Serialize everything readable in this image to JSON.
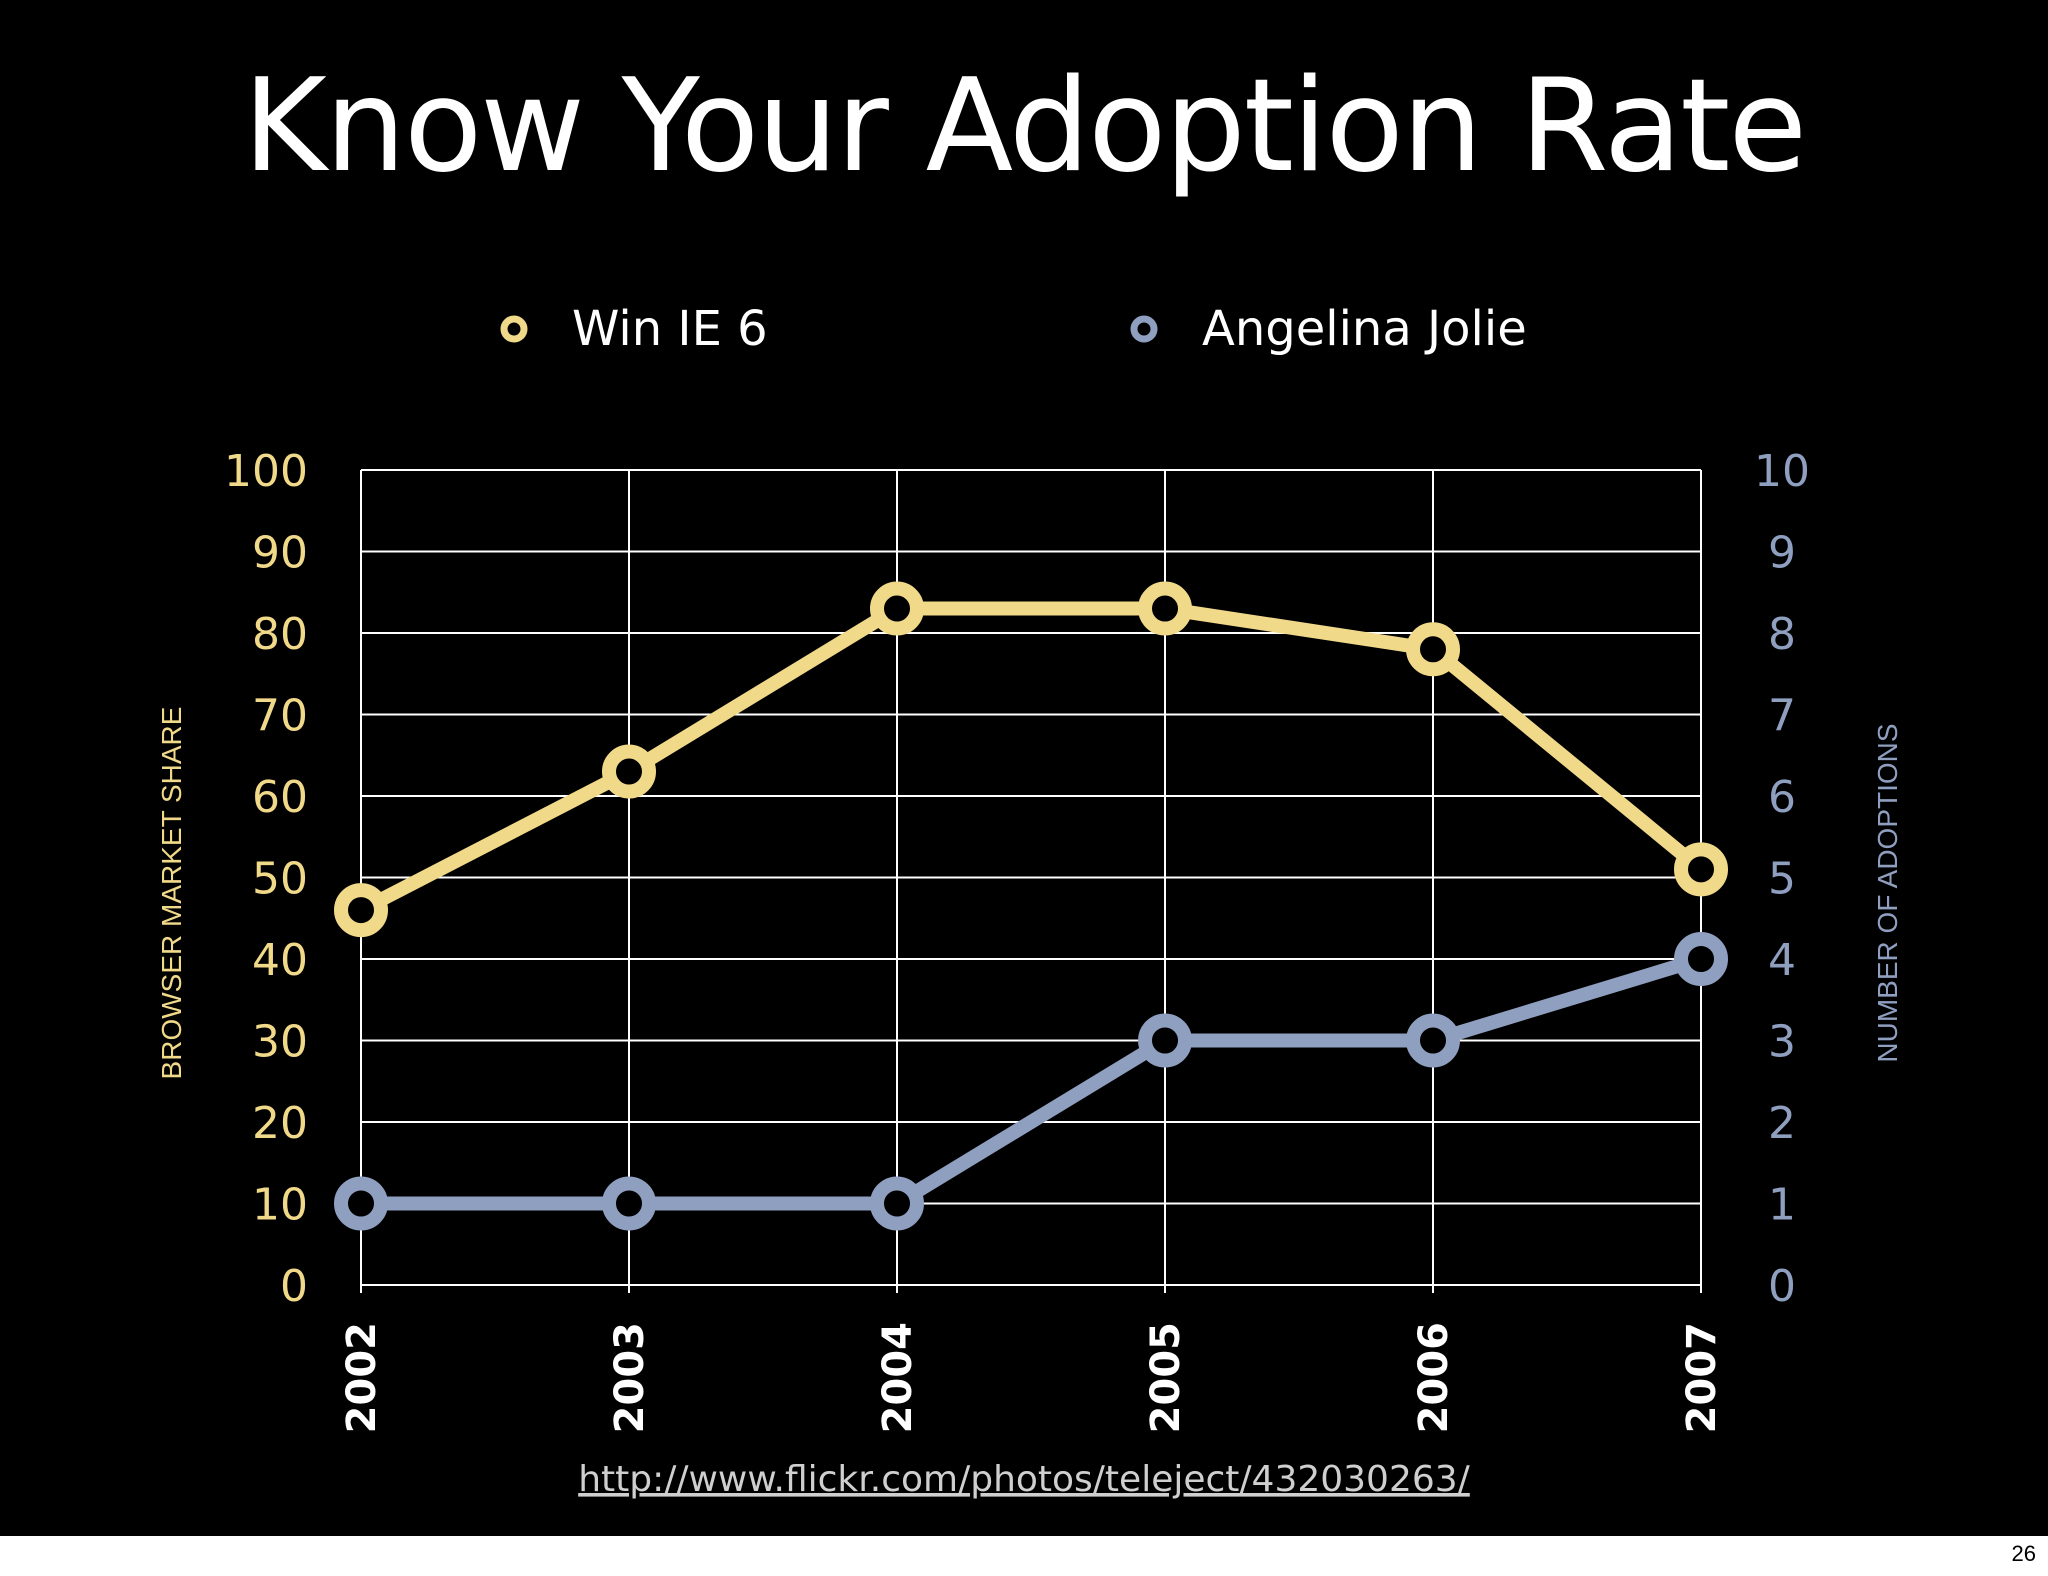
{
  "slide": {
    "title": "Know Your Adoption Rate",
    "source_url": "http://www.flickr.com/photos/teleject/432030263/",
    "page_number": "26"
  },
  "colors": {
    "background": "#000000",
    "win_ie6": "#f1d98a",
    "angelina": "#8f9fc0",
    "grid": "#ffffff"
  },
  "chart_data": {
    "type": "line",
    "x": [
      "2002",
      "2003",
      "2004",
      "2005",
      "2006",
      "2007"
    ],
    "series": [
      {
        "name": "Win IE 6",
        "axis": "left",
        "values": [
          46,
          63,
          83,
          83,
          78,
          51
        ]
      },
      {
        "name": "Angelina Jolie",
        "axis": "right",
        "values": [
          1,
          1,
          1,
          3,
          3,
          4
        ]
      }
    ],
    "ylabel_left": "BROWSER MARKET SHARE",
    "ylabel_right": "NUMBER OF ADOPTIONS",
    "ylim_left": [
      0,
      100
    ],
    "ylim_right": [
      0,
      10
    ],
    "yticks_left": [
      "0",
      "10",
      "20",
      "30",
      "40",
      "50",
      "60",
      "70",
      "80",
      "90",
      "100"
    ],
    "yticks_right": [
      "0",
      "1",
      "2",
      "3",
      "4",
      "5",
      "6",
      "7",
      "8",
      "9",
      "10"
    ],
    "grid": true,
    "legend_position": "top-center"
  }
}
